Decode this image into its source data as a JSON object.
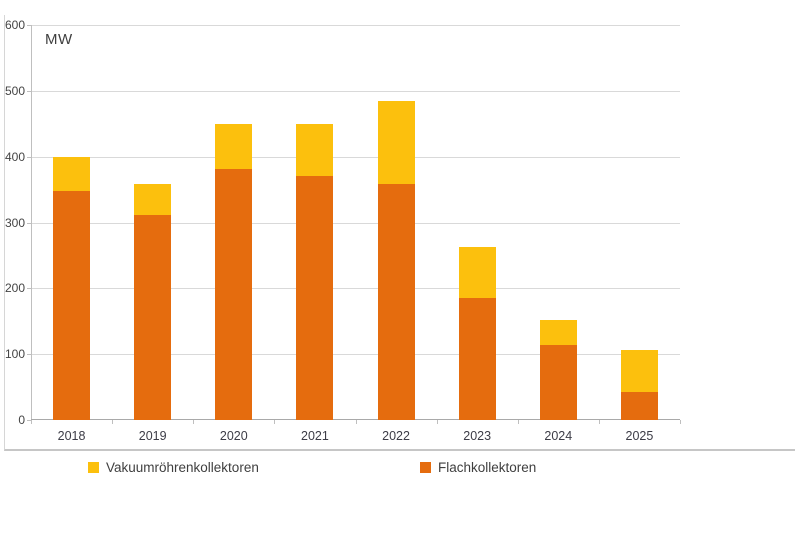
{
  "chart_data": {
    "type": "bar",
    "stacked": true,
    "title": "",
    "unit_label": "MW",
    "xlabel": "",
    "ylabel": "MW",
    "categories": [
      "2018",
      "2019",
      "2020",
      "2021",
      "2022",
      "2023",
      "2024",
      "2025"
    ],
    "series": [
      {
        "name": "Flachkollektoren",
        "color": "#e56c0e",
        "values": [
          348,
          311,
          381,
          370,
          358,
          186,
          114,
          43
        ]
      },
      {
        "name": "Vakuumröhrenkollektoren",
        "color": "#fcc00d",
        "values": [
          52,
          47,
          69,
          80,
          127,
          77,
          38,
          63
        ]
      }
    ],
    "stack_totals": [
      400,
      358,
      450,
      450,
      485,
      263,
      152,
      106
    ],
    "ylim": [
      0,
      600
    ],
    "ytick_step": 100,
    "ytick_labels": [
      "600",
      "500",
      "400",
      "300",
      "200",
      "100",
      "0"
    ],
    "grid": true,
    "legend_position": "bottom",
    "legend": [
      {
        "label": "Vakuumröhrenkollektoren",
        "color": "#fcc00d"
      },
      {
        "label": "Flachkollektoren",
        "color": "#e56c0e"
      }
    ],
    "colors": {
      "gridline": "#d9d9d9",
      "axis": "#bfbfbf",
      "frame_border": "#c9c9c9",
      "text": "#404040"
    }
  }
}
